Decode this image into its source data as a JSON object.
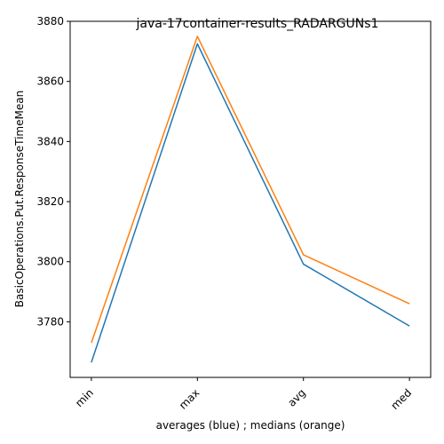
{
  "chart_data": {
    "type": "line",
    "title": "java-17container-results_RADARGUNs1",
    "xlabel": "averages (blue) ; medians (orange)",
    "ylabel": "BasicOperations.Put.ResponseTimeMean",
    "categories": [
      "min",
      "max",
      "avg",
      "med"
    ],
    "ylim": [
      3761.5,
      3880
    ],
    "yticks": [
      3780,
      3800,
      3820,
      3840,
      3860,
      3880
    ],
    "grid": false,
    "series": [
      {
        "color": "#1f77b4",
        "values": [
          3766.5,
          3872.5,
          3799.2,
          3778.6
        ]
      },
      {
        "color": "#ff7f0e",
        "values": [
          3773.0,
          3875.0,
          3802.3,
          3786.0
        ]
      }
    ]
  }
}
